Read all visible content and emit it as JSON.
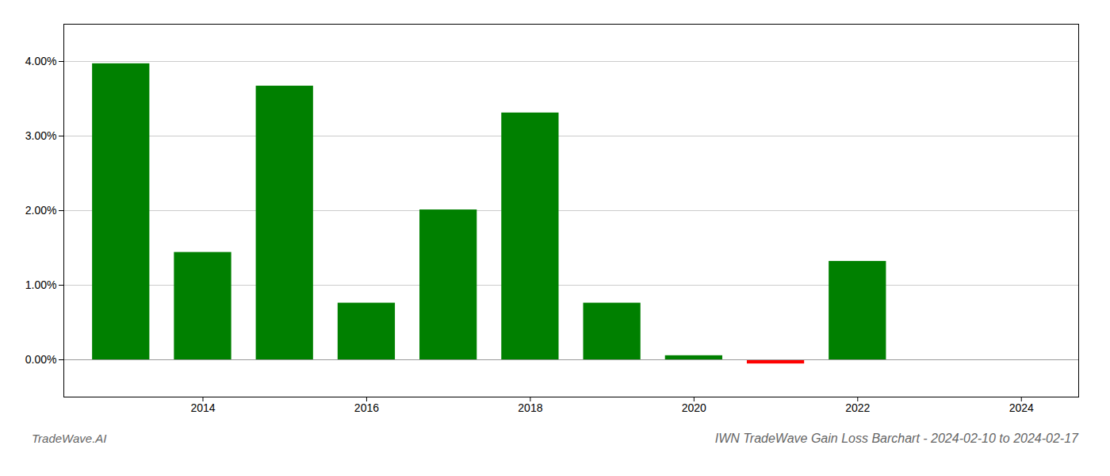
{
  "chart_data": {
    "type": "bar",
    "title": "IWN TradeWave Gain Loss Barchart - 2024-02-10 to 2024-02-17",
    "annotations": [
      "TradeWave.AI"
    ],
    "x": [
      2013,
      2014,
      2015,
      2016,
      2017,
      2018,
      2019,
      2020,
      2021,
      2022,
      2023
    ],
    "values": [
      0.0397,
      0.0144,
      0.0367,
      0.0076,
      0.0201,
      0.0331,
      0.0076,
      0.00055,
      -0.00055,
      0.0132,
      0
    ],
    "colors": [
      "#008000",
      "#008000",
      "#008000",
      "#008000",
      "#008000",
      "#008000",
      "#008000",
      "#008000",
      "#ff0000",
      "#008000",
      "#008000"
    ],
    "xlim": [
      2012.3,
      2024.7
    ],
    "xticks": [
      2014,
      2016,
      2018,
      2020,
      2022,
      2024
    ],
    "ylim": [
      -0.005,
      0.045
    ],
    "yticks": [
      {
        "value": 0,
        "label": "0.00%"
      },
      {
        "value": 0.01,
        "label": "1.00%"
      },
      {
        "value": 0.02,
        "label": "2.00%"
      },
      {
        "value": 0.03,
        "label": "3.00%"
      },
      {
        "value": 0.04,
        "label": "4.00%"
      }
    ],
    "grid": true
  }
}
